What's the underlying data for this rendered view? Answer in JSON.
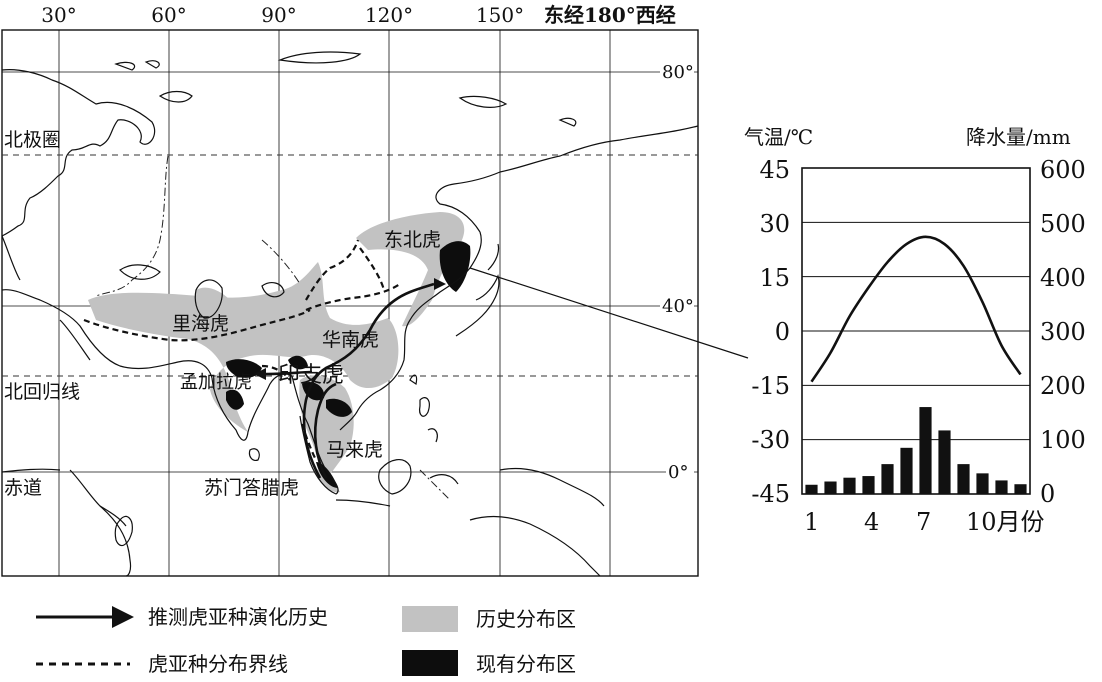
{
  "map": {
    "longitudes": [
      "30°",
      "60°",
      "90°",
      "120°",
      "150°"
    ],
    "lon_180": "东经180°西经",
    "latitudes": [
      "80°",
      "40°",
      "0°"
    ],
    "arctic_circle": "北极圈",
    "tropic": "北回归线",
    "equator": "赤道",
    "subspecies": {
      "amur": "东北虎",
      "caspian": "里海虎",
      "south_china": "华南虎",
      "bengal": "孟加拉虎",
      "indochinese": "印支虎",
      "malayan": "马来虎",
      "sumatran": "苏门答腊虎"
    }
  },
  "climate_chart": {
    "temp_label": "气温/℃",
    "precip_label": "降水量/mm",
    "temp_ticks": [
      "45",
      "30",
      "15",
      "0",
      "-15",
      "-30",
      "-45"
    ],
    "precip_ticks": [
      "600",
      "500",
      "400",
      "300",
      "200",
      "100",
      "0"
    ],
    "x_ticks": [
      "1",
      "4",
      "7",
      "10月份"
    ]
  },
  "chart_data": {
    "type": "bar",
    "categories": [
      "1",
      "2",
      "3",
      "4",
      "5",
      "6",
      "7",
      "8",
      "9",
      "10",
      "11",
      "12"
    ],
    "series": [
      {
        "values": [
          17,
          23,
          30,
          33,
          55,
          85,
          160,
          117,
          55,
          38,
          25,
          18
        ]
      },
      {
        "values": [
          -14,
          -6,
          4,
          12,
          19,
          24,
          26,
          24,
          18,
          8,
          -4,
          -12
        ]
      }
    ],
    "xlabel": "月份",
    "ylabel": "气温/℃",
    "ylim": [
      -45,
      45
    ],
    "y2label": "降水量/mm",
    "y2lim": [
      0,
      600
    ],
    "grid": true
  },
  "legend": {
    "evolution": "推测虎亚种演化历史",
    "boundary": "虎亚种分布界线",
    "historical": "历史分布区",
    "current": "现有分布区"
  }
}
